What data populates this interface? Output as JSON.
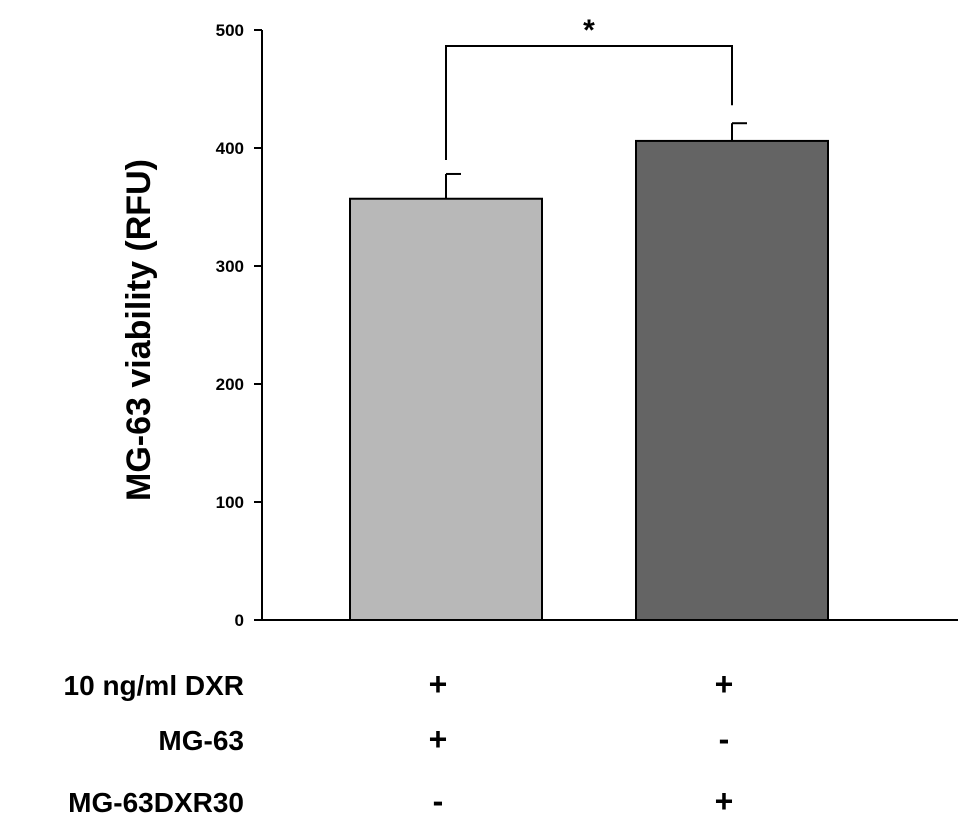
{
  "chart_data": {
    "type": "bar",
    "categories": [
      "MG-63",
      "MG-63DXR30"
    ],
    "values": [
      357,
      406
    ],
    "errors": [
      21,
      15
    ],
    "colors": [
      "#b8b8b8",
      "#646464"
    ],
    "ylabel": "MG-63 viability (RFU)",
    "ylim": [
      0,
      500
    ],
    "yticks": [
      "0",
      "100",
      "200",
      "300",
      "400",
      "500"
    ],
    "grid": false,
    "significance": "*",
    "conditions": [
      {
        "label": "10 ng/ml DXR",
        "signs": [
          "+",
          "+"
        ]
      },
      {
        "label": "MG-63",
        "signs": [
          "+",
          "-"
        ]
      },
      {
        "label": "MG-63DXR30",
        "signs": [
          "-",
          "+"
        ]
      }
    ]
  }
}
